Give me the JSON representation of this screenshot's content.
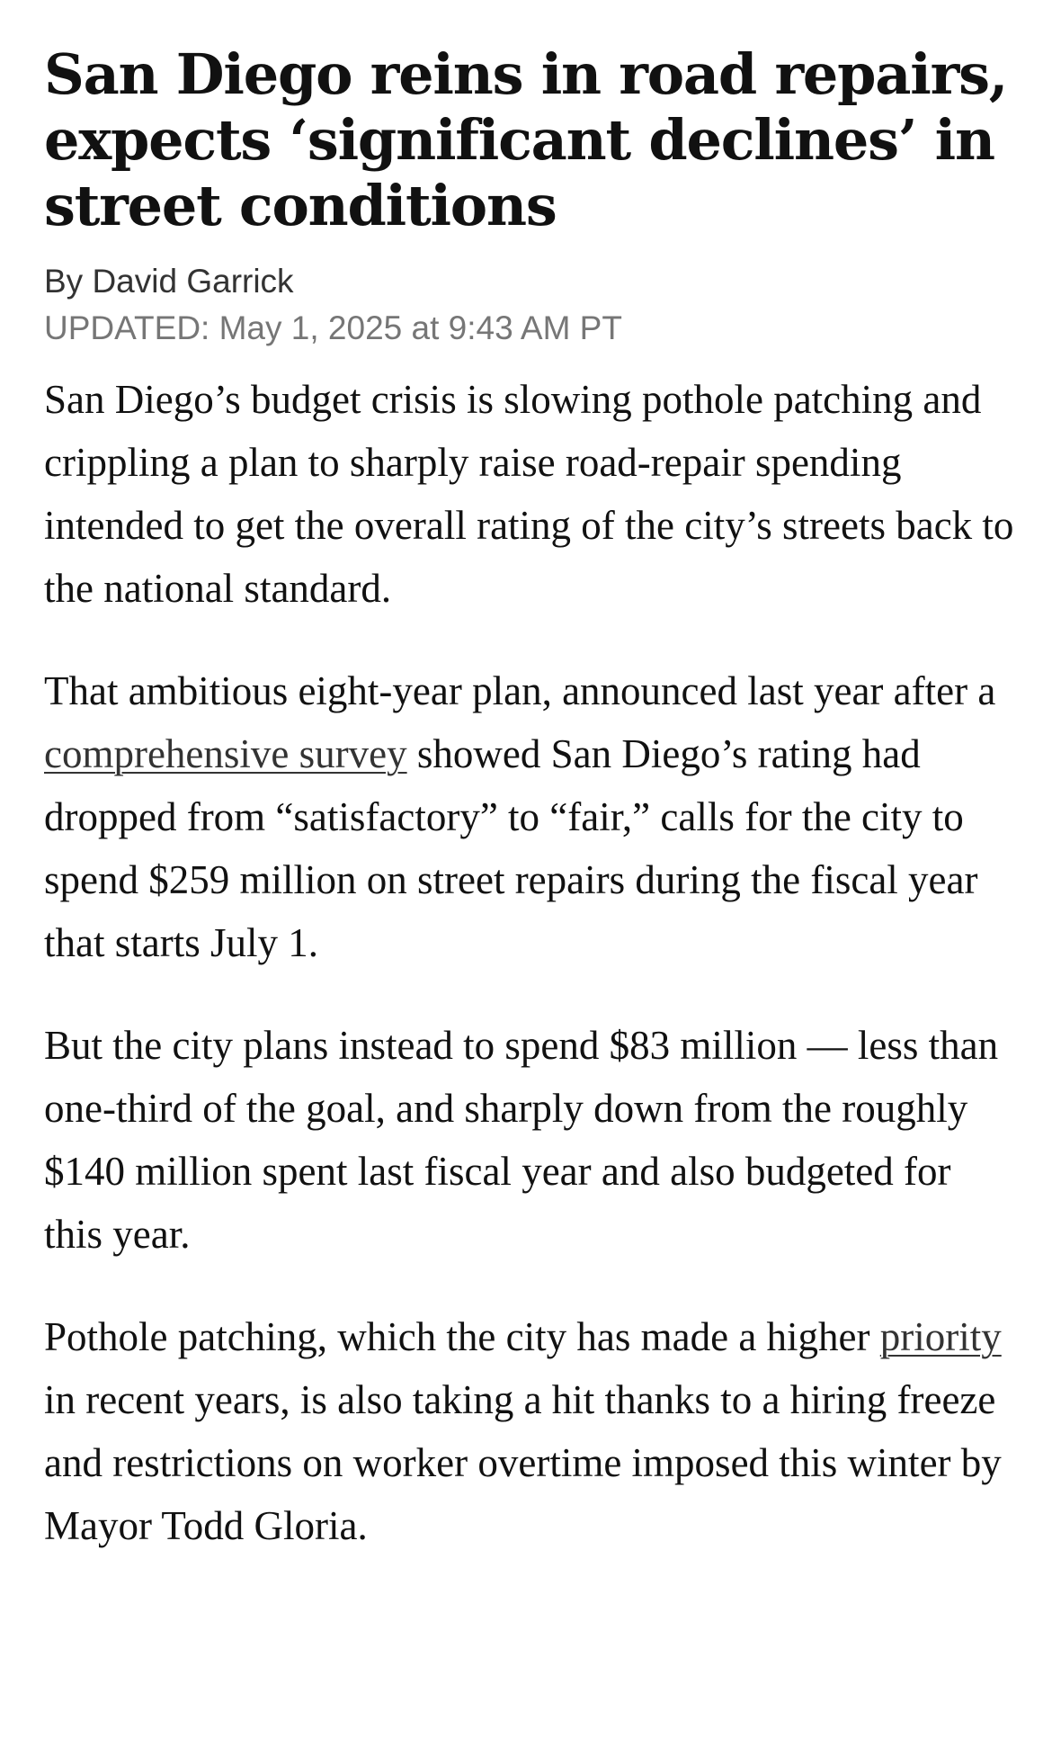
{
  "article": {
    "headline": "San Diego reins in road repairs, expects ‘significant declines’ in street conditions",
    "byline": "By David Garrick",
    "updated": "UPDATED: May 1, 2025 at 9:43 AM PT",
    "paragraphs": [
      {
        "text": "San Diego’s budget crisis is slowing pothole patching and crippling a plan to sharply raise road-repair spending intended to get the overall rating of the city’s streets back to the national standard."
      },
      {
        "before": "That ambitious eight-year plan, announced last year after a ",
        "link": "comprehensive survey",
        "after": " showed San Diego’s rating had dropped from “satisfactory” to “fair,” calls for the city to spend $259 million on street repairs during the fiscal year that starts July 1."
      },
      {
        "text": "But the city plans instead to spend $83 million — less than one-third of the goal, and sharply down from the roughly $140 million spent last fiscal year and also budgeted for this year."
      },
      {
        "before": "Pothole patching, which the city has made a high­er ",
        "link": "priority",
        "after": " in recent years, is also taking a hit thanks to a hiring freeze and restrictions on work­er overtime imposed this winter by Mayor Todd Gloria."
      }
    ]
  }
}
